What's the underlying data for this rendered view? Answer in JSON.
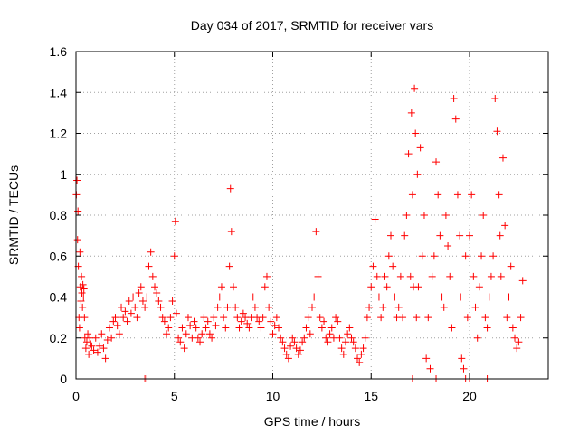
{
  "chart_data": {
    "type": "scatter",
    "title": "Day 034 of 2017, SRMTID for receiver vars",
    "xlabel": "GPS time / hours",
    "ylabel": "SRMTID / TECUs",
    "xlim": [
      0,
      24
    ],
    "ylim": [
      0,
      1.6
    ],
    "xticks": [
      0,
      5,
      10,
      15,
      20
    ],
    "xtick_labels": [
      "0",
      "5",
      "10",
      "15",
      "20"
    ],
    "yticks": [
      0,
      0.2,
      0.4,
      0.6,
      0.8,
      1.0,
      1.2,
      1.4,
      1.6
    ],
    "ytick_labels": [
      "0",
      "0.2",
      "0.4",
      "0.6",
      "0.8",
      "1",
      "1.2",
      "1.4",
      "1.6"
    ],
    "grid": true,
    "marker": "+",
    "color": "#ff0000",
    "series": [
      {
        "name": "SRMTID",
        "x": [
          0.02,
          0.05,
          0.08,
          0.1,
          0.12,
          0.15,
          0.18,
          0.2,
          0.22,
          0.25,
          0.28,
          0.3,
          0.33,
          0.35,
          0.38,
          0.4,
          0.43,
          0.45,
          0.5,
          0.55,
          0.6,
          0.65,
          0.7,
          0.75,
          0.8,
          0.9,
          1.0,
          1.1,
          1.2,
          1.3,
          1.4,
          1.5,
          1.6,
          1.7,
          1.8,
          1.9,
          2.0,
          2.1,
          2.2,
          2.3,
          2.4,
          2.5,
          2.6,
          2.7,
          2.8,
          2.9,
          3.0,
          3.1,
          3.2,
          3.3,
          3.4,
          3.5,
          3.6,
          3.7,
          3.8,
          3.9,
          4.0,
          4.1,
          4.2,
          4.3,
          4.4,
          4.5,
          4.6,
          4.7,
          4.8,
          4.9,
          5.0,
          5.05,
          5.1,
          5.2,
          5.3,
          5.4,
          5.5,
          5.6,
          5.7,
          5.8,
          5.9,
          6.0,
          6.1,
          6.2,
          6.3,
          6.4,
          6.5,
          6.6,
          6.7,
          6.8,
          6.9,
          7.0,
          7.1,
          7.2,
          7.3,
          7.4,
          7.5,
          7.6,
          7.7,
          7.8,
          7.85,
          7.9,
          8.0,
          8.1,
          8.2,
          8.3,
          8.4,
          8.5,
          8.6,
          8.7,
          8.8,
          8.9,
          9.0,
          9.1,
          9.2,
          9.3,
          9.4,
          9.5,
          9.6,
          9.7,
          9.8,
          9.9,
          10.0,
          10.1,
          10.2,
          10.3,
          10.4,
          10.5,
          10.6,
          10.7,
          10.8,
          10.9,
          11.0,
          11.1,
          11.2,
          11.3,
          11.4,
          11.5,
          11.6,
          11.7,
          11.8,
          11.9,
          12.0,
          12.1,
          12.2,
          12.3,
          12.4,
          12.5,
          12.6,
          12.7,
          12.8,
          12.9,
          13.0,
          13.1,
          13.2,
          13.3,
          13.4,
          13.5,
          13.6,
          13.7,
          13.8,
          13.9,
          14.0,
          14.1,
          14.2,
          14.3,
          14.4,
          14.5,
          14.6,
          14.7,
          14.8,
          14.9,
          15.0,
          15.1,
          15.2,
          15.3,
          15.4,
          15.5,
          15.6,
          15.7,
          15.8,
          15.9,
          16.0,
          16.1,
          16.2,
          16.3,
          16.4,
          16.5,
          16.6,
          16.7,
          16.8,
          16.9,
          17.0,
          17.05,
          17.1,
          17.15,
          17.2,
          17.25,
          17.3,
          17.35,
          17.4,
          17.5,
          17.6,
          17.7,
          17.8,
          17.9,
          18.0,
          18.1,
          18.2,
          18.3,
          18.4,
          18.5,
          18.6,
          18.7,
          18.8,
          18.9,
          19.0,
          19.1,
          19.2,
          19.3,
          19.4,
          19.5,
          19.55,
          19.6,
          19.7,
          19.8,
          19.9,
          20.0,
          20.1,
          20.2,
          20.3,
          20.4,
          20.5,
          20.6,
          20.7,
          20.8,
          20.9,
          21.0,
          21.1,
          21.2,
          21.3,
          21.4,
          21.5,
          21.55,
          21.6,
          21.7,
          21.8,
          21.9,
          22.0,
          22.1,
          22.2,
          22.3,
          22.4,
          22.5,
          22.6,
          22.7,
          3.5,
          3.6,
          17.1,
          18.3,
          19.8,
          20.0,
          20.9
        ],
        "y": [
          0.9,
          0.97,
          0.68,
          0.82,
          0.55,
          0.3,
          0.25,
          0.62,
          0.45,
          0.38,
          0.5,
          0.42,
          0.35,
          0.46,
          0.4,
          0.44,
          0.3,
          0.2,
          0.15,
          0.18,
          0.22,
          0.12,
          0.2,
          0.17,
          0.16,
          0.14,
          0.2,
          0.13,
          0.16,
          0.22,
          0.15,
          0.1,
          0.19,
          0.25,
          0.2,
          0.28,
          0.3,
          0.26,
          0.22,
          0.35,
          0.3,
          0.33,
          0.28,
          0.38,
          0.32,
          0.4,
          0.35,
          0.3,
          0.42,
          0.45,
          0.38,
          0.35,
          0.4,
          0.55,
          0.62,
          0.5,
          0.45,
          0.42,
          0.38,
          0.35,
          0.3,
          0.28,
          0.22,
          0.25,
          0.3,
          0.38,
          0.6,
          0.77,
          0.32,
          0.2,
          0.18,
          0.25,
          0.15,
          0.22,
          0.3,
          0.26,
          0.2,
          0.28,
          0.25,
          0.2,
          0.18,
          0.22,
          0.3,
          0.25,
          0.28,
          0.22,
          0.2,
          0.3,
          0.26,
          0.35,
          0.4,
          0.45,
          0.3,
          0.25,
          0.35,
          0.55,
          0.93,
          0.72,
          0.45,
          0.35,
          0.3,
          0.25,
          0.28,
          0.32,
          0.3,
          0.27,
          0.25,
          0.3,
          0.4,
          0.35,
          0.3,
          0.28,
          0.25,
          0.3,
          0.45,
          0.5,
          0.35,
          0.28,
          0.22,
          0.26,
          0.3,
          0.25,
          0.2,
          0.18,
          0.15,
          0.12,
          0.1,
          0.16,
          0.2,
          0.18,
          0.15,
          0.12,
          0.14,
          0.18,
          0.2,
          0.25,
          0.3,
          0.22,
          0.35,
          0.4,
          0.72,
          0.5,
          0.3,
          0.25,
          0.28,
          0.2,
          0.18,
          0.22,
          0.25,
          0.2,
          0.3,
          0.28,
          0.2,
          0.15,
          0.12,
          0.18,
          0.22,
          0.25,
          0.2,
          0.18,
          0.15,
          0.1,
          0.08,
          0.12,
          0.15,
          0.2,
          0.3,
          0.35,
          0.45,
          0.55,
          0.78,
          0.5,
          0.4,
          0.3,
          0.35,
          0.5,
          0.45,
          0.6,
          0.7,
          0.55,
          0.4,
          0.3,
          0.35,
          0.5,
          0.3,
          0.7,
          0.8,
          1.1,
          0.5,
          1.3,
          0.9,
          0.45,
          1.42,
          1.2,
          0.3,
          1.0,
          0.45,
          1.13,
          0.6,
          0.8,
          0.1,
          0.3,
          0.05,
          0.5,
          0.6,
          1.06,
          0.9,
          0.7,
          0.4,
          0.35,
          0.8,
          0.65,
          0.5,
          0.25,
          1.37,
          1.27,
          0.9,
          0.7,
          0.4,
          0.1,
          0.05,
          0.6,
          0.3,
          0.7,
          0.9,
          0.5,
          0.35,
          0.2,
          0.45,
          0.6,
          0.8,
          0.3,
          0.25,
          0.4,
          0.5,
          0.6,
          1.37,
          1.21,
          0.9,
          0.7,
          0.5,
          1.08,
          0.75,
          0.3,
          0.4,
          0.55,
          0.25,
          0.2,
          0.15,
          0.18,
          0.3,
          0.48,
          0.0,
          0.0,
          0.0,
          0.0,
          0.0,
          0.0,
          0.0
        ]
      }
    ]
  }
}
